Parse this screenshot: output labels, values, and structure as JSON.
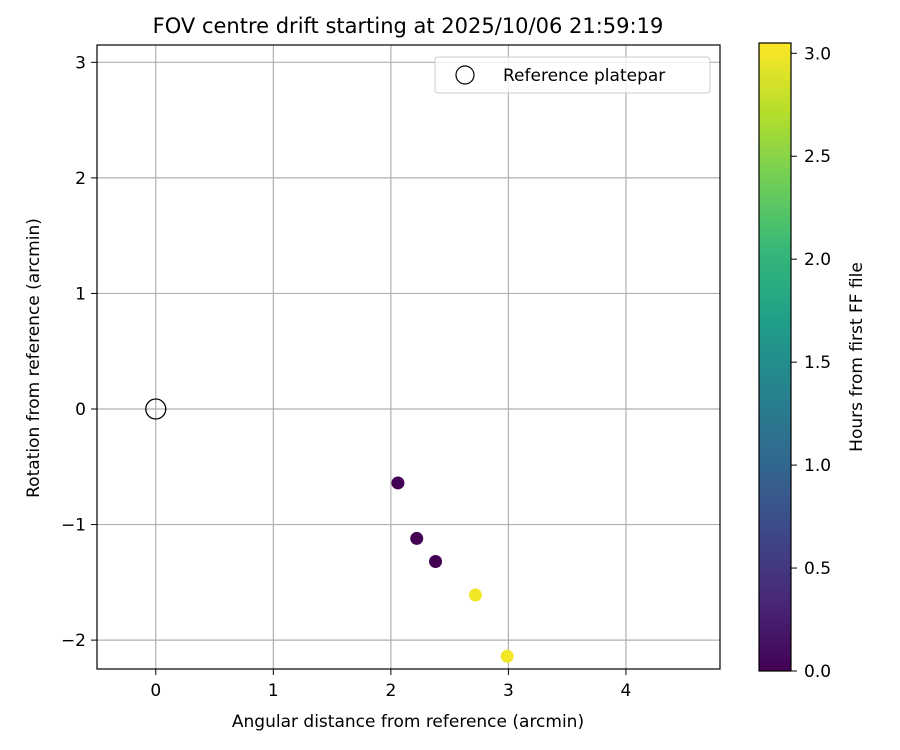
{
  "chart_data": {
    "type": "scatter",
    "title": "FOV centre drift starting at 2025/10/06 21:59:19",
    "xlabel": "Angular distance from reference (arcmin)",
    "ylabel": "Rotation from reference (arcmin)",
    "xlim": [
      -0.5,
      4.8
    ],
    "ylim": [
      -2.25,
      3.15
    ],
    "xticks": [
      0,
      1,
      2,
      3,
      4
    ],
    "xtick_labels": [
      "0",
      "1",
      "2",
      "3",
      "4"
    ],
    "yticks": [
      -2,
      -1,
      0,
      1,
      2,
      3
    ],
    "ytick_labels": [
      "−2",
      "−1",
      "0",
      "1",
      "2",
      "3"
    ],
    "grid": true,
    "reference": {
      "x": 0,
      "y": 0,
      "label": "Reference platepar"
    },
    "series": [
      {
        "name": "FOV drift",
        "points": [
          {
            "x": 2.06,
            "y": -0.64,
            "hours": 0.0
          },
          {
            "x": 2.22,
            "y": -1.12,
            "hours": 0.0
          },
          {
            "x": 2.38,
            "y": -1.32,
            "hours": 0.0
          },
          {
            "x": 2.72,
            "y": -1.61,
            "hours": 3.0
          },
          {
            "x": 2.99,
            "y": -2.14,
            "hours": 3.0
          }
        ]
      }
    ],
    "legend": {
      "position": "top-right",
      "entries": [
        "Reference platepar"
      ]
    },
    "colorbar": {
      "label": "Hours from first FF file",
      "range": [
        0.0,
        3.05
      ],
      "ticks": [
        0.0,
        0.5,
        1.0,
        1.5,
        2.0,
        2.5,
        3.0
      ],
      "tick_labels": [
        "0.0",
        "0.5",
        "1.0",
        "1.5",
        "2.0",
        "2.5",
        "3.0"
      ],
      "colormap": "viridis",
      "stops": [
        "#440154",
        "#482878",
        "#3e4989",
        "#31688e",
        "#26828e",
        "#1f9e89",
        "#35b779",
        "#6ece58",
        "#b5de2b",
        "#fde725"
      ]
    }
  }
}
